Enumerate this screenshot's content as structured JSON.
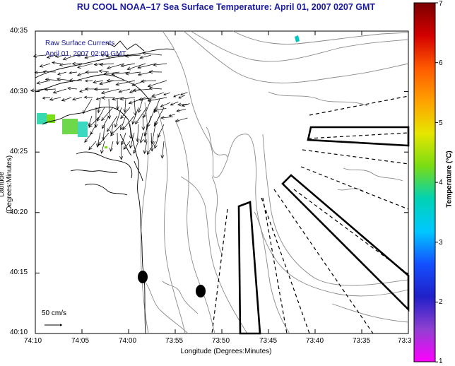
{
  "title": "RU COOL  NOAA–17  Sea Surface Temperature:  April 01, 2007 0207 GMT",
  "axes": {
    "xlabel": "Longitude (Degrees:Minutes)",
    "ylabel": "Latitude (Degrees:Minutes)",
    "xticks": [
      "74:10",
      "74:05",
      "74:00",
      "73:55",
      "73:50",
      "73:45",
      "73:40",
      "73:35",
      "73:3"
    ],
    "yticks": [
      "40:35",
      "40:30",
      "40:25",
      "40:20",
      "40:15",
      "40:10"
    ]
  },
  "legend": {
    "line1": "Raw Surface Currents",
    "line2": "April 01, 2007 02:00 GMT"
  },
  "scale": {
    "label": "50 cm/s"
  },
  "colorbar": {
    "label": "Temperature (°C)",
    "ticks": [
      "7",
      "6",
      "5",
      "4",
      "3",
      "2",
      "1"
    ],
    "colors": [
      "#7a0000",
      "#d40000",
      "#ff5a00",
      "#ffa000",
      "#e6e600",
      "#7adc14",
      "#00d2b4",
      "#00c8ff",
      "#1450ff",
      "#2020c8",
      "#9040d0",
      "#ff00ff"
    ]
  }
}
